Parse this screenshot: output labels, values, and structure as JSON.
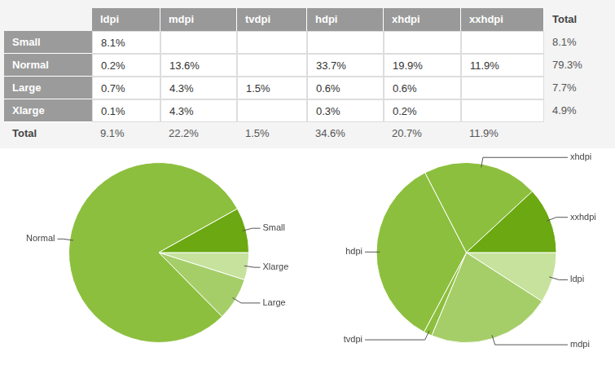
{
  "table": {
    "columns": [
      "ldpi",
      "mdpi",
      "tvdpi",
      "hdpi",
      "xhdpi",
      "xxhdpi"
    ],
    "total_header": "Total",
    "rows": [
      {
        "label": "Small",
        "cells": [
          "8.1%",
          null,
          null,
          null,
          null,
          null
        ],
        "total": "8.1%"
      },
      {
        "label": "Normal",
        "cells": [
          "0.2%",
          "13.6%",
          null,
          "33.7%",
          "19.9%",
          "11.9%"
        ],
        "total": "79.3%"
      },
      {
        "label": "Large",
        "cells": [
          "0.7%",
          "4.3%",
          "1.5%",
          "0.6%",
          "0.6%",
          null
        ],
        "total": "7.7%"
      },
      {
        "label": "Xlarge",
        "cells": [
          "0.1%",
          "4.3%",
          null,
          "0.3%",
          "0.2%",
          null
        ],
        "total": "4.9%"
      }
    ],
    "total_row": {
      "label": "Total",
      "cells": [
        "9.1%",
        "22.2%",
        "1.5%",
        "34.6%",
        "20.7%",
        "11.9%"
      ]
    }
  },
  "chart_data": [
    {
      "type": "pie",
      "categories": [
        "Xlarge",
        "Large",
        "Normal",
        "Small"
      ],
      "values": [
        4.9,
        7.7,
        79.3,
        8.1
      ],
      "colors": [
        "#c6e29c",
        "#a5ce69",
        "#8dbf3e",
        "#6ba812"
      ]
    },
    {
      "type": "pie",
      "categories": [
        "ldpi",
        "mdpi",
        "tvdpi",
        "hdpi",
        "xhdpi",
        "xxhdpi"
      ],
      "values": [
        9.1,
        22.2,
        1.5,
        34.6,
        20.7,
        11.9
      ],
      "colors": [
        "#c6e29c",
        "#a5ce69",
        "#8dbf3e",
        "#8dbf3e",
        "#8dbf3e",
        "#6ba812"
      ]
    }
  ]
}
